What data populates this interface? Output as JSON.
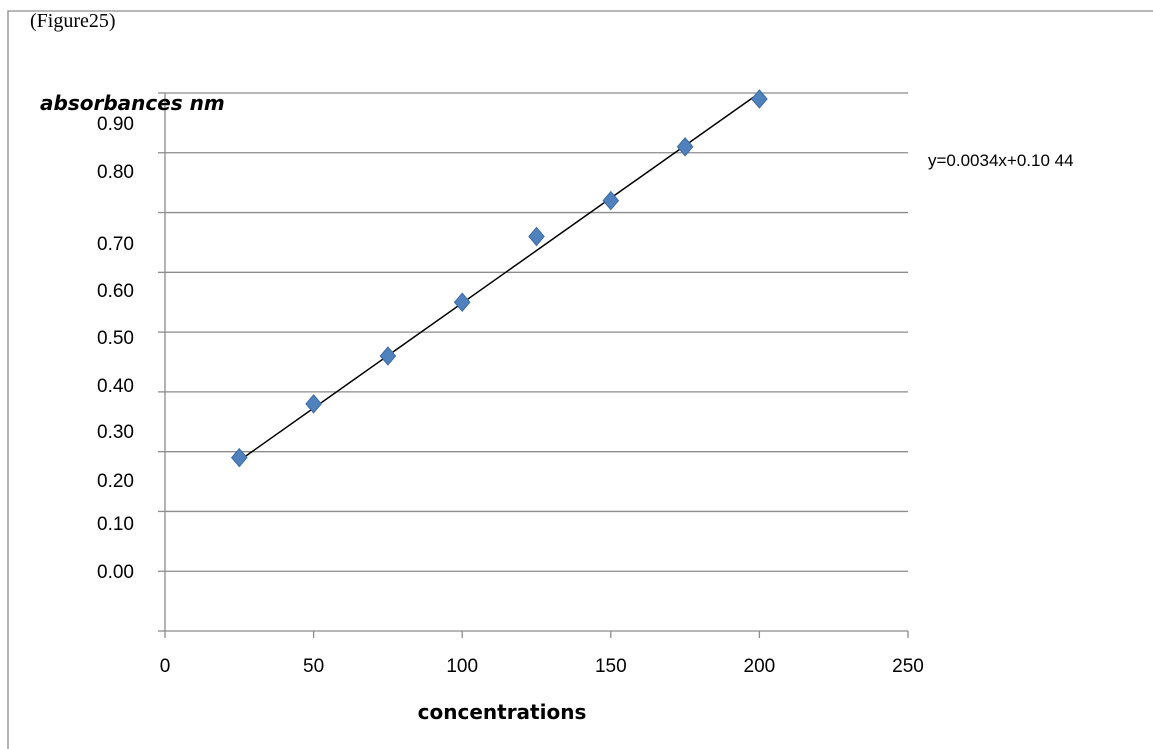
{
  "figure_caption": "(Figure25)",
  "chart_data": {
    "type": "scatter",
    "title": "",
    "xlabel": "concentrations",
    "ylabel": "absorbances nm",
    "x_ticks": [
      "0",
      "50",
      "100",
      "150",
      "200",
      "250"
    ],
    "y_ticks": [
      "0.90",
      "0.80",
      "0.70",
      "0.60",
      "0.50",
      "0.40",
      "0.30",
      "0.20",
      "0.10",
      "0.00"
    ],
    "xlim": [
      0,
      250
    ],
    "ylim": [
      0,
      0.9
    ],
    "grid": "horizontal",
    "series": [
      {
        "x": [
          25,
          50,
          75,
          100,
          125,
          150,
          175,
          200
        ],
        "y": [
          0.19,
          0.28,
          0.36,
          0.45,
          0.56,
          0.62,
          0.71,
          0.79
        ],
        "marker": "diamond",
        "color": "#4f81bd"
      }
    ],
    "trendline": {
      "type": "linear",
      "slope": 0.0034,
      "intercept": 0.1044,
      "x_range": [
        25,
        200
      ],
      "label": "y=0.0034x+0.10 44",
      "color": "#000000"
    }
  }
}
